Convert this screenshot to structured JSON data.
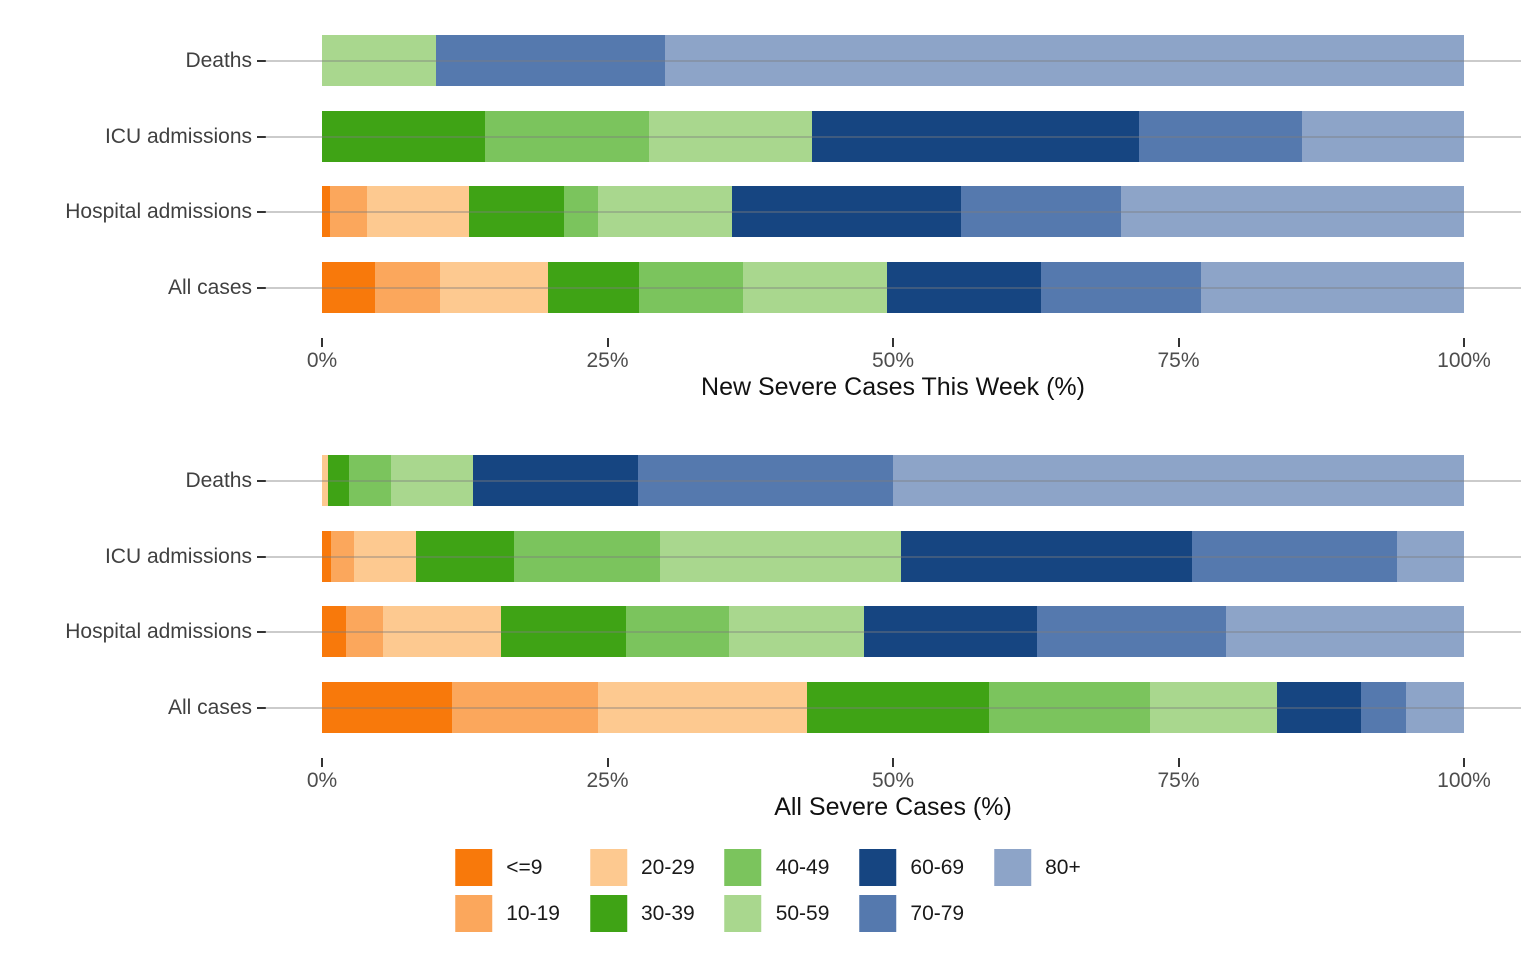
{
  "age_groups": [
    {
      "label": "<=9",
      "color": "#F8790B"
    },
    {
      "label": "10-19",
      "color": "#FBA75C"
    },
    {
      "label": "20-29",
      "color": "#FDC990"
    },
    {
      "label": "30-39",
      "color": "#3FA315"
    },
    {
      "label": "40-49",
      "color": "#7BC45D"
    },
    {
      "label": "50-59",
      "color": "#A9D78E"
    },
    {
      "label": "60-69",
      "color": "#164581"
    },
    {
      "label": "70-79",
      "color": "#5579AE"
    },
    {
      "label": "80+",
      "color": "#8DA4C8"
    }
  ],
  "legend": {
    "position": "bottom",
    "labels": [
      "<=9",
      "10-19",
      "20-29",
      "30-39",
      "40-49",
      "50-59",
      "60-69",
      "70-79",
      "80+"
    ]
  },
  "chart_data": [
    {
      "type": "bar",
      "orientation": "horizontal",
      "stacked": true,
      "unit": "percent",
      "xlabel": "New Severe Cases This Week (%)",
      "xlim": [
        0,
        100
      ],
      "xticks": [
        0,
        25,
        50,
        75,
        100
      ],
      "xtick_labels": [
        "0%",
        "25%",
        "50%",
        "75%",
        "100%"
      ],
      "grid": "major-y-only",
      "categories": [
        "Deaths",
        "ICU admissions",
        "Hospital admissions",
        "All cases"
      ],
      "series": [
        {
          "name": "<=9",
          "values": [
            0,
            0,
            0.7,
            4.6
          ]
        },
        {
          "name": "10-19",
          "values": [
            0,
            0,
            3.2,
            5.7
          ]
        },
        {
          "name": "20-29",
          "values": [
            0,
            0,
            9.0,
            9.5
          ]
        },
        {
          "name": "30-39",
          "values": [
            0,
            14.3,
            8.3,
            8.0
          ]
        },
        {
          "name": "40-49",
          "values": [
            0,
            14.3,
            3.0,
            9.1
          ]
        },
        {
          "name": "50-59",
          "values": [
            10.0,
            14.3,
            11.7,
            12.6
          ]
        },
        {
          "name": "60-69",
          "values": [
            0,
            28.6,
            20.1,
            13.5
          ]
        },
        {
          "name": "70-79",
          "values": [
            20.0,
            14.3,
            14.0,
            14.0
          ]
        },
        {
          "name": "80+",
          "values": [
            70.0,
            14.2,
            30.0,
            23.0
          ]
        }
      ]
    },
    {
      "type": "bar",
      "orientation": "horizontal",
      "stacked": true,
      "unit": "percent",
      "xlabel": "All Severe Cases (%)",
      "xlim": [
        0,
        100
      ],
      "xticks": [
        0,
        25,
        50,
        75,
        100
      ],
      "xtick_labels": [
        "0%",
        "25%",
        "50%",
        "75%",
        "100%"
      ],
      "grid": "major-y-only",
      "categories": [
        "Deaths",
        "ICU admissions",
        "Hospital admissions",
        "All cases"
      ],
      "series": [
        {
          "name": "<=9",
          "values": [
            0,
            0.8,
            2.1,
            11.4
          ]
        },
        {
          "name": "10-19",
          "values": [
            0,
            2.0,
            3.2,
            12.8
          ]
        },
        {
          "name": "20-29",
          "values": [
            0.5,
            5.4,
            10.4,
            18.3
          ]
        },
        {
          "name": "30-39",
          "values": [
            1.9,
            8.6,
            10.9,
            15.9
          ]
        },
        {
          "name": "40-49",
          "values": [
            3.6,
            12.8,
            9.0,
            14.1
          ]
        },
        {
          "name": "50-59",
          "values": [
            7.2,
            21.1,
            11.9,
            11.1
          ]
        },
        {
          "name": "60-69",
          "values": [
            14.5,
            25.5,
            15.1,
            7.4
          ]
        },
        {
          "name": "70-79",
          "values": [
            22.3,
            17.9,
            16.6,
            3.9
          ]
        },
        {
          "name": "80+",
          "values": [
            50.0,
            5.9,
            20.8,
            5.1
          ]
        }
      ]
    }
  ]
}
